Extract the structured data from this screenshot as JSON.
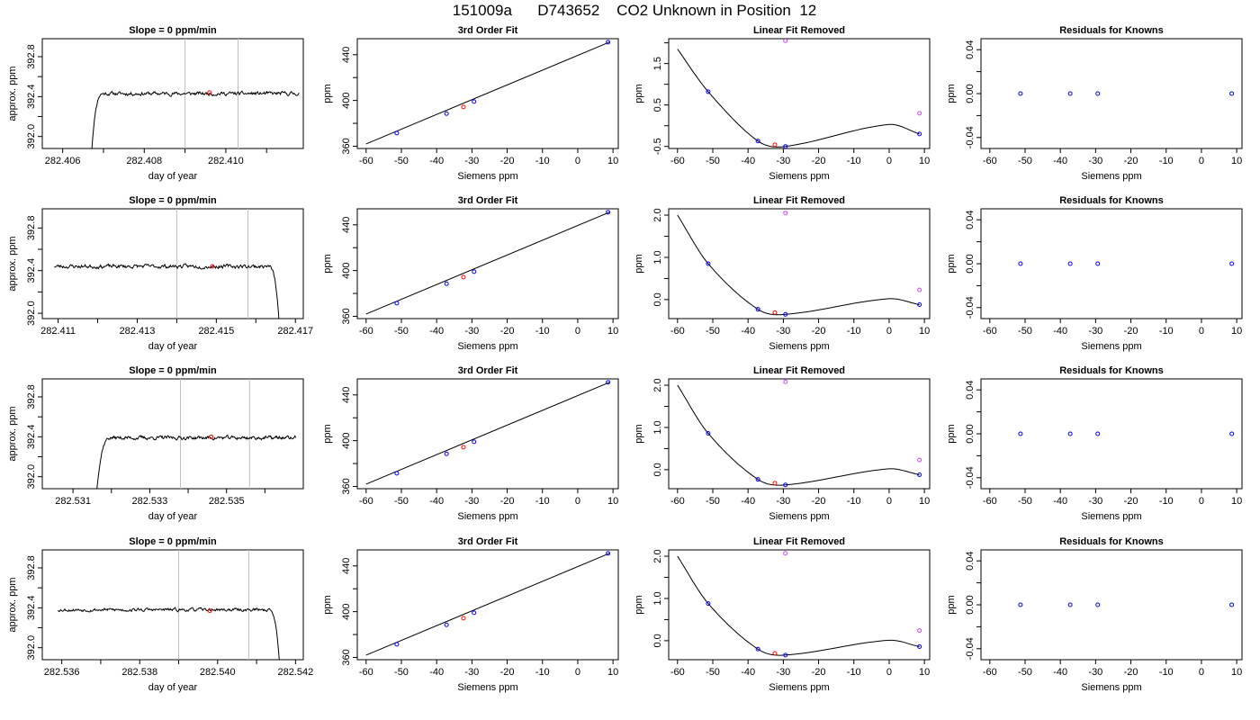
{
  "page": {
    "title": "151009a      D743652    CO2 Unknown in Position  12"
  },
  "colors": {
    "known": "#0000ff",
    "unknown": "#ff0000",
    "excluded": "#cc44ff",
    "trace": "#000000",
    "marker_line": "#c0c0c0"
  },
  "chart_data": [
    {
      "type": "line",
      "title": "Slope =  0  ppm/min",
      "xlabel": "day of year",
      "ylabel": "approx. ppm",
      "xlim": [
        282.4055,
        282.4119
      ],
      "ylim": [
        391.88,
        392.98
      ],
      "xticks": [
        282.406,
        282.407,
        282.408,
        282.409,
        282.41,
        282.411
      ],
      "xtick_labels": [
        "282.406",
        "",
        "282.408",
        "",
        "282.410",
        ""
      ],
      "yticks": [
        392.0,
        392.2,
        392.4,
        392.6,
        392.8
      ],
      "ytick_labels": [
        "392.0",
        "",
        "392.4",
        "",
        "392.8"
      ],
      "vlines": [
        282.409,
        282.4103
      ],
      "highlight": {
        "x": 282.4096,
        "y": 392.44
      },
      "trace": {
        "start_x": 282.4067,
        "end_x": 282.4118,
        "mean": 392.43,
        "noise": 0.018,
        "rise": "start",
        "rise_duration": 0.0003,
        "seed": 11
      }
    },
    {
      "type": "scatter",
      "title": "3rd Order Fit",
      "xlabel": "Siemens ppm",
      "ylabel": "ppm",
      "xlim": [
        -62.5,
        11.5
      ],
      "ylim": [
        358,
        454
      ],
      "xticks": [
        -60,
        -50,
        -40,
        -30,
        -20,
        -10,
        0,
        10
      ],
      "xtick_labels": [
        "-60",
        "-50",
        "-40",
        "-30",
        "-20",
        "-10",
        "0",
        "10"
      ],
      "yticks": [
        360,
        380,
        400,
        420,
        440
      ],
      "ytick_labels": [
        "360",
        "",
        "400",
        "",
        "440"
      ],
      "line": {
        "x": [
          -60,
          9
        ],
        "y": [
          362,
          451
        ]
      },
      "knowns": {
        "x": [
          -51.3,
          -37.2,
          -29.4,
          8.6
        ],
        "y": [
          371.5,
          388.5,
          399,
          451
        ]
      },
      "unknowns": {
        "x": [
          -32.4
        ],
        "y": [
          394.3
        ]
      }
    },
    {
      "type": "scatter",
      "title": "Linear Fit Removed",
      "xlabel": "Siemens ppm",
      "ylabel": "ppm",
      "xlim": [
        -62.5,
        11.5
      ],
      "ylim": [
        -0.55,
        2.1
      ],
      "xticks": [
        -60,
        -50,
        -40,
        -30,
        -20,
        -10,
        0,
        10
      ],
      "xtick_labels": [
        "-60",
        "-50",
        "-40",
        "-30",
        "-20",
        "-10",
        "0",
        "10"
      ],
      "yticks": [
        -0.5,
        0.0,
        0.5,
        1.0,
        1.5,
        2.0
      ],
      "ytick_labels": [
        "-0.5",
        "",
        "0.5",
        "",
        "1.5",
        ""
      ],
      "curve": {
        "x": [
          -60,
          -51.3,
          -37.2,
          -29.4,
          0,
          8.6
        ],
        "y": [
          1.85,
          0.82,
          -0.37,
          -0.5,
          0.03,
          -0.2
        ]
      },
      "knowns": {
        "x": [
          -51.3,
          -37.2,
          -29.4,
          8.6
        ],
        "y": [
          0.82,
          -0.37,
          -0.5,
          -0.2
        ]
      },
      "unknowns": {
        "x": [
          -32.4
        ],
        "y": [
          -0.46
        ]
      },
      "excluded": {
        "x": [
          -29.4,
          8.6
        ],
        "y": [
          2.05,
          0.3
        ]
      }
    },
    {
      "type": "scatter",
      "title": "Residuals for Knowns",
      "xlabel": "Siemens ppm",
      "ylabel": "ppm",
      "xlim": [
        -62.5,
        11.5
      ],
      "ylim": [
        -0.05,
        0.05
      ],
      "xticks": [
        -60,
        -50,
        -40,
        -30,
        -20,
        -10,
        0,
        10
      ],
      "xtick_labels": [
        "-60",
        "-50",
        "-40",
        "-30",
        "-20",
        "-10",
        "0",
        "10"
      ],
      "yticks": [
        -0.04,
        -0.02,
        0.0,
        0.02,
        0.04
      ],
      "ytick_labels": [
        "-0.04",
        "",
        "0.00",
        "",
        "0.04"
      ],
      "knowns": {
        "x": [
          -51.3,
          -37.2,
          -29.4,
          8.6
        ],
        "y": [
          0,
          0,
          0,
          0
        ]
      }
    },
    {
      "type": "line",
      "title": "Slope =  0  ppm/min",
      "xlabel": "day of year",
      "ylabel": "approx. ppm",
      "xlim": [
        282.4106,
        282.4172
      ],
      "ylim": [
        391.95,
        392.98
      ],
      "xticks": [
        282.411,
        282.412,
        282.413,
        282.414,
        282.415,
        282.416,
        282.417
      ],
      "xtick_labels": [
        "282.411",
        "",
        "282.413",
        "",
        "282.415",
        "",
        "282.417"
      ],
      "yticks": [
        392.0,
        392.2,
        392.4,
        392.6,
        392.8
      ],
      "ytick_labels": [
        "392.0",
        "",
        "392.4",
        "",
        "392.8"
      ],
      "vlines": [
        282.414,
        282.4158
      ],
      "highlight": {
        "x": 282.4149,
        "y": 392.44
      },
      "trace": {
        "start_x": 282.4109,
        "end_x": 282.4166,
        "mean": 392.44,
        "noise": 0.018,
        "rise": "end",
        "rise_duration": 0.0003,
        "seed": 23
      }
    },
    {
      "type": "scatter",
      "title": "3rd Order Fit",
      "xlabel": "Siemens ppm",
      "ylabel": "ppm",
      "xlim": [
        -62.5,
        11.5
      ],
      "ylim": [
        358,
        454
      ],
      "xticks": [
        -60,
        -50,
        -40,
        -30,
        -20,
        -10,
        0,
        10
      ],
      "xtick_labels": [
        "-60",
        "-50",
        "-40",
        "-30",
        "-20",
        "-10",
        "0",
        "10"
      ],
      "yticks": [
        360,
        380,
        400,
        420,
        440
      ],
      "ytick_labels": [
        "360",
        "",
        "400",
        "",
        "440"
      ],
      "line": {
        "x": [
          -60,
          9
        ],
        "y": [
          362,
          451
        ]
      },
      "knowns": {
        "x": [
          -51.3,
          -37.2,
          -29.4,
          8.6
        ],
        "y": [
          371.5,
          388.5,
          399,
          451
        ]
      },
      "unknowns": {
        "x": [
          -32.4
        ],
        "y": [
          394.3
        ]
      }
    },
    {
      "type": "scatter",
      "title": "Linear Fit Removed",
      "xlabel": "Siemens ppm",
      "ylabel": "ppm",
      "xlim": [
        -62.5,
        11.5
      ],
      "ylim": [
        -0.45,
        2.15
      ],
      "xticks": [
        -60,
        -50,
        -40,
        -30,
        -20,
        -10,
        0,
        10
      ],
      "xtick_labels": [
        "-60",
        "-50",
        "-40",
        "-30",
        "-20",
        "-10",
        "0",
        "10"
      ],
      "yticks": [
        0.0,
        0.5,
        1.0,
        1.5,
        2.0
      ],
      "ytick_labels": [
        "0.0",
        "",
        "1.0",
        "",
        "2.0"
      ],
      "curve": {
        "x": [
          -60,
          -51.3,
          -37.2,
          -29.4,
          0,
          8.6
        ],
        "y": [
          2.0,
          0.85,
          -0.23,
          -0.35,
          0.02,
          -0.12
        ]
      },
      "knowns": {
        "x": [
          -51.3,
          -37.2,
          -29.4,
          8.6
        ],
        "y": [
          0.85,
          -0.23,
          -0.35,
          -0.12
        ]
      },
      "unknowns": {
        "x": [
          -32.4
        ],
        "y": [
          -0.31
        ]
      },
      "excluded": {
        "x": [
          -29.4,
          8.6
        ],
        "y": [
          2.05,
          0.23
        ]
      }
    },
    {
      "type": "scatter",
      "title": "Residuals for Knowns",
      "xlabel": "Siemens ppm",
      "ylabel": "ppm",
      "xlim": [
        -62.5,
        11.5
      ],
      "ylim": [
        -0.05,
        0.05
      ],
      "xticks": [
        -60,
        -50,
        -40,
        -30,
        -20,
        -10,
        0,
        10
      ],
      "xtick_labels": [
        "-60",
        "-50",
        "-40",
        "-30",
        "-20",
        "-10",
        "0",
        "10"
      ],
      "yticks": [
        -0.04,
        -0.02,
        0.0,
        0.02,
        0.04
      ],
      "ytick_labels": [
        "-0.04",
        "",
        "0.00",
        "",
        "0.04"
      ],
      "knowns": {
        "x": [
          -51.3,
          -37.2,
          -29.4,
          8.6
        ],
        "y": [
          0,
          0,
          0,
          0
        ]
      }
    },
    {
      "type": "line",
      "title": "Slope =  0  ppm/min",
      "xlabel": "day of year",
      "ylabel": "approx. ppm",
      "xlim": [
        282.5302,
        282.537
      ],
      "ylim": [
        391.88,
        392.98
      ],
      "xticks": [
        282.531,
        282.532,
        282.533,
        282.534,
        282.535,
        282.536
      ],
      "xtick_labels": [
        "282.531",
        "",
        "282.533",
        "",
        "282.535",
        ""
      ],
      "yticks": [
        392.0,
        392.2,
        392.4,
        392.6,
        392.8
      ],
      "ytick_labels": [
        "392.0",
        "",
        "392.4",
        "",
        "392.8"
      ],
      "vlines": [
        282.5338,
        282.5356
      ],
      "highlight": {
        "x": 282.5346,
        "y": 392.4
      },
      "trace": {
        "start_x": 282.5316,
        "end_x": 282.5368,
        "mean": 392.39,
        "noise": 0.018,
        "rise": "start",
        "rise_duration": 0.0004,
        "seed": 37
      }
    },
    {
      "type": "scatter",
      "title": "3rd Order Fit",
      "xlabel": "Siemens ppm",
      "ylabel": "ppm",
      "xlim": [
        -62.5,
        11.5
      ],
      "ylim": [
        358,
        454
      ],
      "xticks": [
        -60,
        -50,
        -40,
        -30,
        -20,
        -10,
        0,
        10
      ],
      "xtick_labels": [
        "-60",
        "-50",
        "-40",
        "-30",
        "-20",
        "-10",
        "0",
        "10"
      ],
      "yticks": [
        360,
        380,
        400,
        420,
        440
      ],
      "ytick_labels": [
        "360",
        "",
        "400",
        "",
        "440"
      ],
      "line": {
        "x": [
          -60,
          9
        ],
        "y": [
          362,
          451
        ]
      },
      "knowns": {
        "x": [
          -51.3,
          -37.2,
          -29.4,
          8.6
        ],
        "y": [
          371.5,
          388.5,
          399,
          451
        ]
      },
      "unknowns": {
        "x": [
          -32.4
        ],
        "y": [
          394.3
        ]
      }
    },
    {
      "type": "scatter",
      "title": "Linear Fit Removed",
      "xlabel": "Siemens ppm",
      "ylabel": "ppm",
      "xlim": [
        -62.5,
        11.5
      ],
      "ylim": [
        -0.45,
        2.15
      ],
      "xticks": [
        -60,
        -50,
        -40,
        -30,
        -20,
        -10,
        0,
        10
      ],
      "xtick_labels": [
        "-60",
        "-50",
        "-40",
        "-30",
        "-20",
        "-10",
        "0",
        "10"
      ],
      "yticks": [
        0.0,
        0.5,
        1.0,
        1.5,
        2.0
      ],
      "ytick_labels": [
        "0.0",
        "",
        "1.0",
        "",
        "2.0"
      ],
      "curve": {
        "x": [
          -60,
          -51.3,
          -37.2,
          -29.4,
          0,
          8.6
        ],
        "y": [
          2.0,
          0.86,
          -0.23,
          -0.36,
          0.02,
          -0.12
        ]
      },
      "knowns": {
        "x": [
          -51.3,
          -37.2,
          -29.4,
          8.6
        ],
        "y": [
          0.86,
          -0.23,
          -0.36,
          -0.12
        ]
      },
      "unknowns": {
        "x": [
          -32.4
        ],
        "y": [
          -0.32
        ]
      },
      "excluded": {
        "x": [
          -29.4,
          8.6
        ],
        "y": [
          2.08,
          0.23
        ]
      }
    },
    {
      "type": "scatter",
      "title": "Residuals for Knowns",
      "xlabel": "Siemens ppm",
      "ylabel": "ppm",
      "xlim": [
        -62.5,
        11.5
      ],
      "ylim": [
        -0.05,
        0.05
      ],
      "xticks": [
        -60,
        -50,
        -40,
        -30,
        -20,
        -10,
        0,
        10
      ],
      "xtick_labels": [
        "-60",
        "-50",
        "-40",
        "-30",
        "-20",
        "-10",
        "0",
        "10"
      ],
      "yticks": [
        -0.04,
        -0.02,
        0.0,
        0.02,
        0.04
      ],
      "ytick_labels": [
        "-0.04",
        "",
        "0.00",
        "",
        "0.04"
      ],
      "knowns": {
        "x": [
          -51.3,
          -37.2,
          -29.4,
          8.6
        ],
        "y": [
          0,
          0,
          0,
          0
        ]
      }
    },
    {
      "type": "line",
      "title": "Slope =  0  ppm/min",
      "xlabel": "day of year",
      "ylabel": "approx. ppm",
      "xlim": [
        282.5355,
        282.5422
      ],
      "ylim": [
        391.88,
        392.98
      ],
      "xticks": [
        282.536,
        282.537,
        282.538,
        282.539,
        282.54,
        282.541,
        282.542
      ],
      "xtick_labels": [
        "282.536",
        "",
        "282.538",
        "",
        "282.540",
        "",
        "282.542"
      ],
      "yticks": [
        392.0,
        392.2,
        392.4,
        392.6,
        392.8
      ],
      "ytick_labels": [
        "392.0",
        "",
        "392.4",
        "",
        "392.8"
      ],
      "vlines": [
        282.539,
        282.5408
      ],
      "highlight": {
        "x": 282.5398,
        "y": 392.37
      },
      "trace": {
        "start_x": 282.5359,
        "end_x": 282.5416,
        "mean": 392.38,
        "noise": 0.016,
        "rise": "end",
        "rise_duration": 0.0003,
        "seed": 53
      }
    },
    {
      "type": "scatter",
      "title": "3rd Order Fit",
      "xlabel": "Siemens ppm",
      "ylabel": "ppm",
      "xlim": [
        -62.5,
        11.5
      ],
      "ylim": [
        358,
        454
      ],
      "xticks": [
        -60,
        -50,
        -40,
        -30,
        -20,
        -10,
        0,
        10
      ],
      "xtick_labels": [
        "-60",
        "-50",
        "-40",
        "-30",
        "-20",
        "-10",
        "0",
        "10"
      ],
      "yticks": [
        360,
        380,
        400,
        420,
        440
      ],
      "ytick_labels": [
        "360",
        "",
        "400",
        "",
        "440"
      ],
      "line": {
        "x": [
          -60,
          9
        ],
        "y": [
          362,
          451
        ]
      },
      "knowns": {
        "x": [
          -51.3,
          -37.2,
          -29.4,
          8.6
        ],
        "y": [
          371.5,
          388.5,
          399,
          451
        ]
      },
      "unknowns": {
        "x": [
          -32.4
        ],
        "y": [
          394.3
        ]
      }
    },
    {
      "type": "scatter",
      "title": "Linear Fit Removed",
      "xlabel": "Siemens ppm",
      "ylabel": "ppm",
      "xlim": [
        -62.5,
        11.5
      ],
      "ylim": [
        -0.45,
        2.15
      ],
      "xticks": [
        -60,
        -50,
        -40,
        -30,
        -20,
        -10,
        0,
        10
      ],
      "xtick_labels": [
        "-60",
        "-50",
        "-40",
        "-30",
        "-20",
        "-10",
        "0",
        "10"
      ],
      "yticks": [
        0.0,
        0.5,
        1.0,
        1.5,
        2.0
      ],
      "ytick_labels": [
        "0.0",
        "",
        "1.0",
        "",
        "2.0"
      ],
      "curve": {
        "x": [
          -60,
          -51.3,
          -37.2,
          -29.4,
          0,
          8.6
        ],
        "y": [
          2.0,
          0.88,
          -0.2,
          -0.34,
          0.01,
          -0.14
        ]
      },
      "knowns": {
        "x": [
          -51.3,
          -37.2,
          -29.4,
          8.6
        ],
        "y": [
          0.88,
          -0.2,
          -0.34,
          -0.14
        ]
      },
      "unknowns": {
        "x": [
          -32.4
        ],
        "y": [
          -0.3
        ]
      },
      "excluded": {
        "x": [
          -29.4,
          8.6
        ],
        "y": [
          2.07,
          0.24
        ]
      }
    },
    {
      "type": "scatter",
      "title": "Residuals for Knowns",
      "xlabel": "Siemens ppm",
      "ylabel": "ppm",
      "xlim": [
        -62.5,
        11.5
      ],
      "ylim": [
        -0.05,
        0.05
      ],
      "xticks": [
        -60,
        -50,
        -40,
        -30,
        -20,
        -10,
        0,
        10
      ],
      "xtick_labels": [
        "-60",
        "-50",
        "-40",
        "-30",
        "-20",
        "-10",
        "0",
        "10"
      ],
      "yticks": [
        -0.04,
        -0.02,
        0.0,
        0.02,
        0.04
      ],
      "ytick_labels": [
        "-0.04",
        "",
        "0.00",
        "",
        "0.04"
      ],
      "knowns": {
        "x": [
          -51.3,
          -37.2,
          -29.4,
          8.6
        ],
        "y": [
          0,
          0,
          0,
          0
        ]
      }
    }
  ]
}
